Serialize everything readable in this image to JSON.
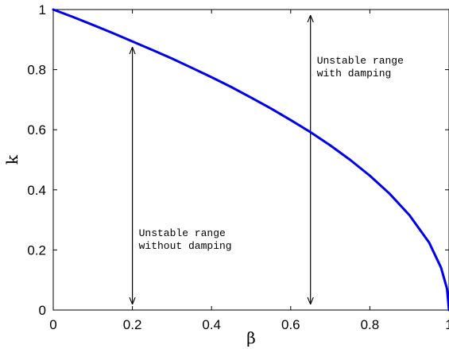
{
  "chart_data": {
    "type": "line",
    "title": "",
    "xlabel": "β",
    "ylabel": "k",
    "xlim": [
      0,
      1
    ],
    "ylim": [
      0,
      1
    ],
    "grid": false,
    "xticks": [
      0,
      0.2,
      0.4,
      0.6,
      0.8,
      1
    ],
    "yticks": [
      0,
      0.2,
      0.4,
      0.6,
      0.8,
      1
    ],
    "xtick_labels": [
      "0",
      "0.2",
      "0.4",
      "0.6",
      "0.8",
      "1"
    ],
    "ytick_labels": [
      "0",
      "0.2",
      "0.4",
      "0.6",
      "0.8",
      "1"
    ],
    "series": [
      {
        "color": "#0000ee",
        "x": [
          0,
          0.05,
          0.1,
          0.15,
          0.2,
          0.25,
          0.3,
          0.35,
          0.4,
          0.45,
          0.5,
          0.55,
          0.6,
          0.65,
          0.7,
          0.75,
          0.8,
          0.85,
          0.9,
          0.95,
          0.98,
          0.995,
          1.0
        ],
        "y": [
          1.0,
          0.975,
          0.949,
          0.922,
          0.894,
          0.866,
          0.837,
          0.806,
          0.775,
          0.742,
          0.707,
          0.671,
          0.632,
          0.592,
          0.548,
          0.5,
          0.447,
          0.387,
          0.316,
          0.224,
          0.141,
          0.071,
          0.0
        ]
      }
    ],
    "annotations": [
      {
        "text_lines": [
          "Unstable range",
          "without damping"
        ],
        "arrow_x": 0.2,
        "arrow_y": [
          0,
          0.894
        ]
      },
      {
        "text_lines": [
          "Unstable range",
          "with damping"
        ],
        "arrow_x": 0.65,
        "arrow_y": [
          0,
          1
        ]
      }
    ]
  }
}
